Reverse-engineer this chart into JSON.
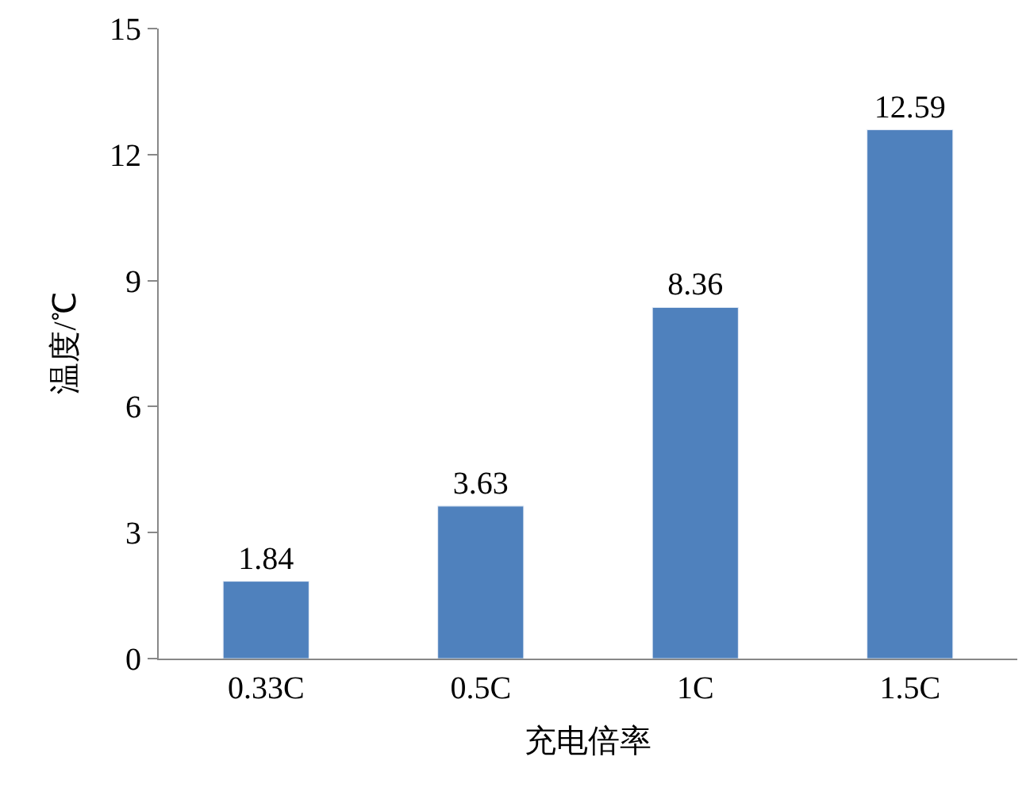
{
  "chart_data": {
    "type": "bar",
    "xlabel": "充电倍率",
    "ylabel": "温度/℃",
    "categories": [
      "0.33C",
      "0.5C",
      "1C",
      "1.5C"
    ],
    "values": [
      1.84,
      3.63,
      8.36,
      12.59
    ],
    "color": "#4f81bd",
    "ylim": [
      0,
      15
    ],
    "yticks": [
      0,
      3,
      6,
      9,
      12,
      15
    ],
    "data_labels": true
  }
}
